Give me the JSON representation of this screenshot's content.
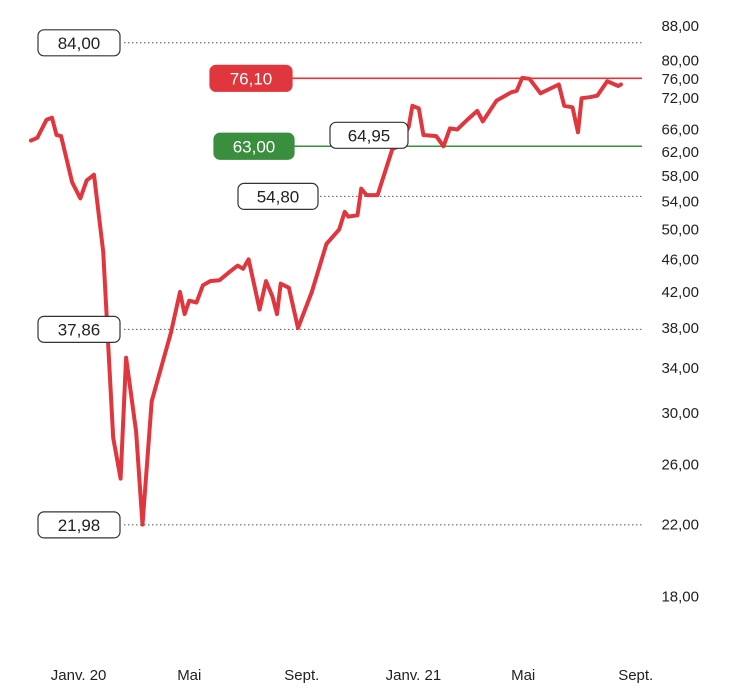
{
  "chart_data": {
    "type": "line",
    "yscale": "log",
    "ylim": [
      16.5,
      90
    ],
    "y_ticks": [
      "88,00",
      "80,00",
      "76,00",
      "72,00",
      "66,00",
      "62,00",
      "58,00",
      "54,00",
      "50,00",
      "46,00",
      "42,00",
      "38,00",
      "34,00",
      "30,00",
      "26,00",
      "22,00",
      "18,00"
    ],
    "x_labels": [
      {
        "label": "Janv. 20",
        "date": "2020-01"
      },
      {
        "label": "Mai",
        "date": "2020-05"
      },
      {
        "label": "Sept.",
        "date": "2020-09"
      },
      {
        "label": "Janv. 21",
        "date": "2021-01"
      },
      {
        "label": "Mai",
        "date": "2021-05"
      },
      {
        "label": "Sept.",
        "date": "2021-09"
      }
    ],
    "xlim": [
      "2019-11-22",
      "2021-09-21"
    ],
    "series": [
      {
        "color": "#e0363d",
        "points": [
          [
            "2019-11-23",
            64.0
          ],
          [
            "2019-11-30",
            64.5
          ],
          [
            "2019-12-10",
            67.8
          ],
          [
            "2019-12-16",
            68.2
          ],
          [
            "2019-12-21",
            65.0
          ],
          [
            "2019-12-26",
            64.8
          ],
          [
            "2020-01-07",
            57.0
          ],
          [
            "2020-01-16",
            54.5
          ],
          [
            "2020-01-23",
            57.3
          ],
          [
            "2020-01-31",
            58.2
          ],
          [
            "2020-02-10",
            47.0
          ],
          [
            "2020-02-21",
            28.0
          ],
          [
            "2020-02-29",
            25.0
          ],
          [
            "2020-03-06",
            35.0
          ],
          [
            "2020-03-17",
            28.5
          ],
          [
            "2020-03-24",
            22.0
          ],
          [
            "2020-04-03",
            31.0
          ],
          [
            "2020-04-24",
            37.5
          ],
          [
            "2020-05-04",
            42.0
          ],
          [
            "2020-05-09",
            39.5
          ],
          [
            "2020-05-14",
            41.0
          ],
          [
            "2020-05-22",
            40.8
          ],
          [
            "2020-05-29",
            42.8
          ],
          [
            "2020-06-06",
            43.3
          ],
          [
            "2020-06-16",
            43.4
          ],
          [
            "2020-06-28",
            44.5
          ],
          [
            "2020-07-06",
            45.2
          ],
          [
            "2020-07-12",
            44.8
          ],
          [
            "2020-07-18",
            46.0
          ],
          [
            "2020-07-30",
            40.0
          ],
          [
            "2020-08-06",
            43.3
          ],
          [
            "2020-08-13",
            41.5
          ],
          [
            "2020-08-18",
            39.5
          ],
          [
            "2020-08-22",
            43.0
          ],
          [
            "2020-08-31",
            42.5
          ],
          [
            "2020-09-10",
            38.0
          ],
          [
            "2020-09-25",
            42.0
          ],
          [
            "2020-10-11",
            48.0
          ],
          [
            "2020-10-25",
            50.0
          ],
          [
            "2020-10-31",
            52.5
          ],
          [
            "2020-11-04",
            51.8
          ],
          [
            "2020-11-14",
            52.0
          ],
          [
            "2020-11-18",
            56.0
          ],
          [
            "2020-11-24",
            55.0
          ],
          [
            "2020-12-06",
            55.0
          ],
          [
            "2020-12-22",
            62.5
          ],
          [
            "2020-12-29",
            63.0
          ],
          [
            "2021-01-09",
            66.5
          ],
          [
            "2021-01-13",
            70.5
          ],
          [
            "2021-01-20",
            70.0
          ],
          [
            "2021-01-25",
            65.0
          ],
          [
            "2021-02-08",
            64.8
          ],
          [
            "2021-02-16",
            63.0
          ],
          [
            "2021-02-23",
            66.2
          ],
          [
            "2021-03-03",
            66.0
          ],
          [
            "2021-03-14",
            67.8
          ],
          [
            "2021-03-25",
            69.5
          ],
          [
            "2021-03-31",
            67.5
          ],
          [
            "2021-04-15",
            71.5
          ],
          [
            "2021-05-01",
            73.2
          ],
          [
            "2021-05-07",
            73.5
          ],
          [
            "2021-05-13",
            76.2
          ],
          [
            "2021-05-21",
            76.0
          ],
          [
            "2021-06-02",
            73.0
          ],
          [
            "2021-06-22",
            74.8
          ],
          [
            "2021-06-28",
            70.5
          ],
          [
            "2021-07-07",
            70.2
          ],
          [
            "2021-07-13",
            65.5
          ],
          [
            "2021-07-17",
            72.0
          ],
          [
            "2021-07-26",
            72.2
          ],
          [
            "2021-08-03",
            72.5
          ],
          [
            "2021-08-14",
            75.5
          ],
          [
            "2021-08-26",
            74.5
          ],
          [
            "2021-08-29",
            74.8
          ]
        ]
      }
    ],
    "reference_lines": [
      {
        "value": 84.0,
        "label": "84,00",
        "style": "dotted",
        "label_side": "left"
      },
      {
        "value": 37.86,
        "label": "37,86",
        "style": "dotted",
        "label_side": "left"
      },
      {
        "value": 21.98,
        "label": "21,98",
        "style": "dotted",
        "label_side": "left"
      },
      {
        "value": 76.1,
        "label": "76,10",
        "style": "solid",
        "color": "#e0363d",
        "label_side": "left"
      },
      {
        "value": 63.0,
        "label": "63,00",
        "style": "solid",
        "color": "#3a8f3f",
        "label_side": "left"
      },
      {
        "value": 54.8,
        "label": "54,80",
        "style": "dotted",
        "label_side": "middle"
      },
      {
        "value": 64.95,
        "label": "64,95",
        "style": "none",
        "label_side": "middle"
      }
    ],
    "colors": {
      "line": "#e0363d",
      "resistance": "#e0363d",
      "support": "#3a8f3f",
      "grid": "#555555",
      "text": "#222222"
    },
    "grid": false,
    "legend": "none"
  }
}
